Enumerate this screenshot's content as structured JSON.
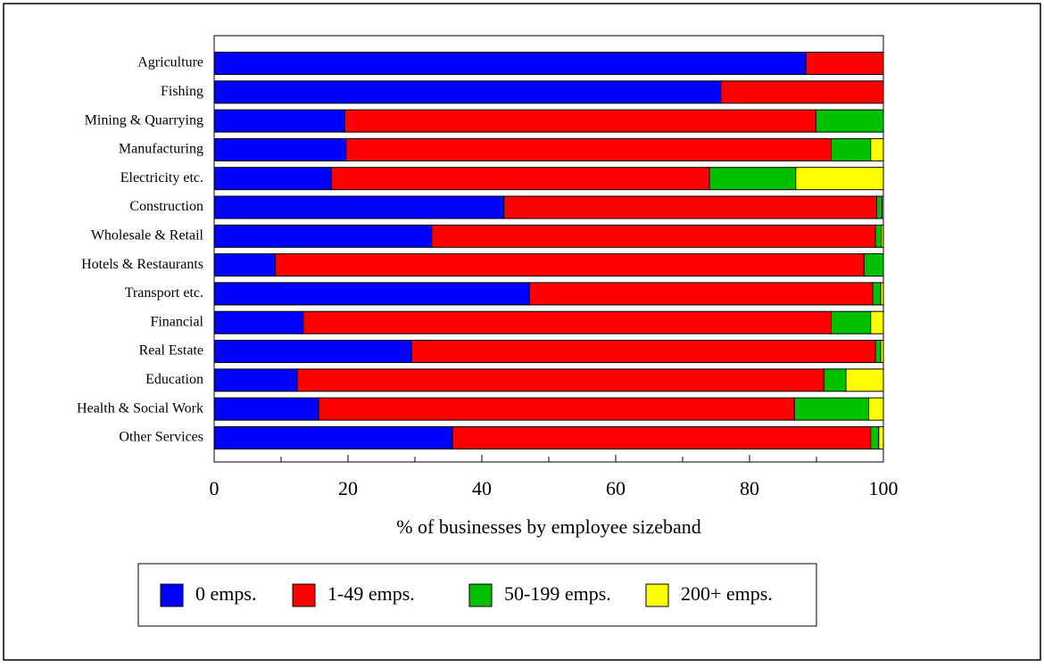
{
  "chart_data": {
    "type": "stacked-bar-horizontal",
    "x_label": "% of businesses by employee sizeband",
    "categories": [
      "Agriculture",
      "Fishing",
      "Mining & Quarrying",
      "Manufacturing",
      "Electricity etc.",
      "Construction",
      "Wholesale & Retail",
      "Hotels & Restaurants",
      "Transport etc.",
      "Financial",
      "Real Estate",
      "Education",
      "Health & Social Work",
      "Other Services"
    ],
    "series": [
      {
        "name": "0 emps.",
        "color": "#0000ff",
        "values": [
          88.4,
          75.7,
          19.5,
          19.7,
          17.5,
          43.3,
          32.5,
          9.1,
          47.1,
          13.3,
          29.5,
          12.4,
          15.6,
          35.6
        ]
      },
      {
        "name": "1-49 emps.",
        "color": "#ff0000",
        "values": [
          11.6,
          24.3,
          70.4,
          72.5,
          56.5,
          55.7,
          66.3,
          88.0,
          51.3,
          78.9,
          69.3,
          78.7,
          71.1,
          62.5
        ]
      },
      {
        "name": "50-199 emps.",
        "color": "#00c000",
        "values": [
          0,
          0,
          10.1,
          5.9,
          12.9,
          0.8,
          0.9,
          2.9,
          1.2,
          5.9,
          0.8,
          3.3,
          11.1,
          1.2
        ]
      },
      {
        "name": "200+ emps.",
        "color": "#ffff00",
        "values": [
          0,
          0,
          0,
          1.9,
          13.1,
          0.2,
          0.3,
          0,
          0.4,
          1.9,
          0.4,
          5.6,
          2.2,
          0.7
        ]
      }
    ],
    "xlim": [
      0,
      100
    ],
    "xticks": [
      0,
      20,
      40,
      60,
      80,
      100
    ],
    "legend": "bottom"
  }
}
